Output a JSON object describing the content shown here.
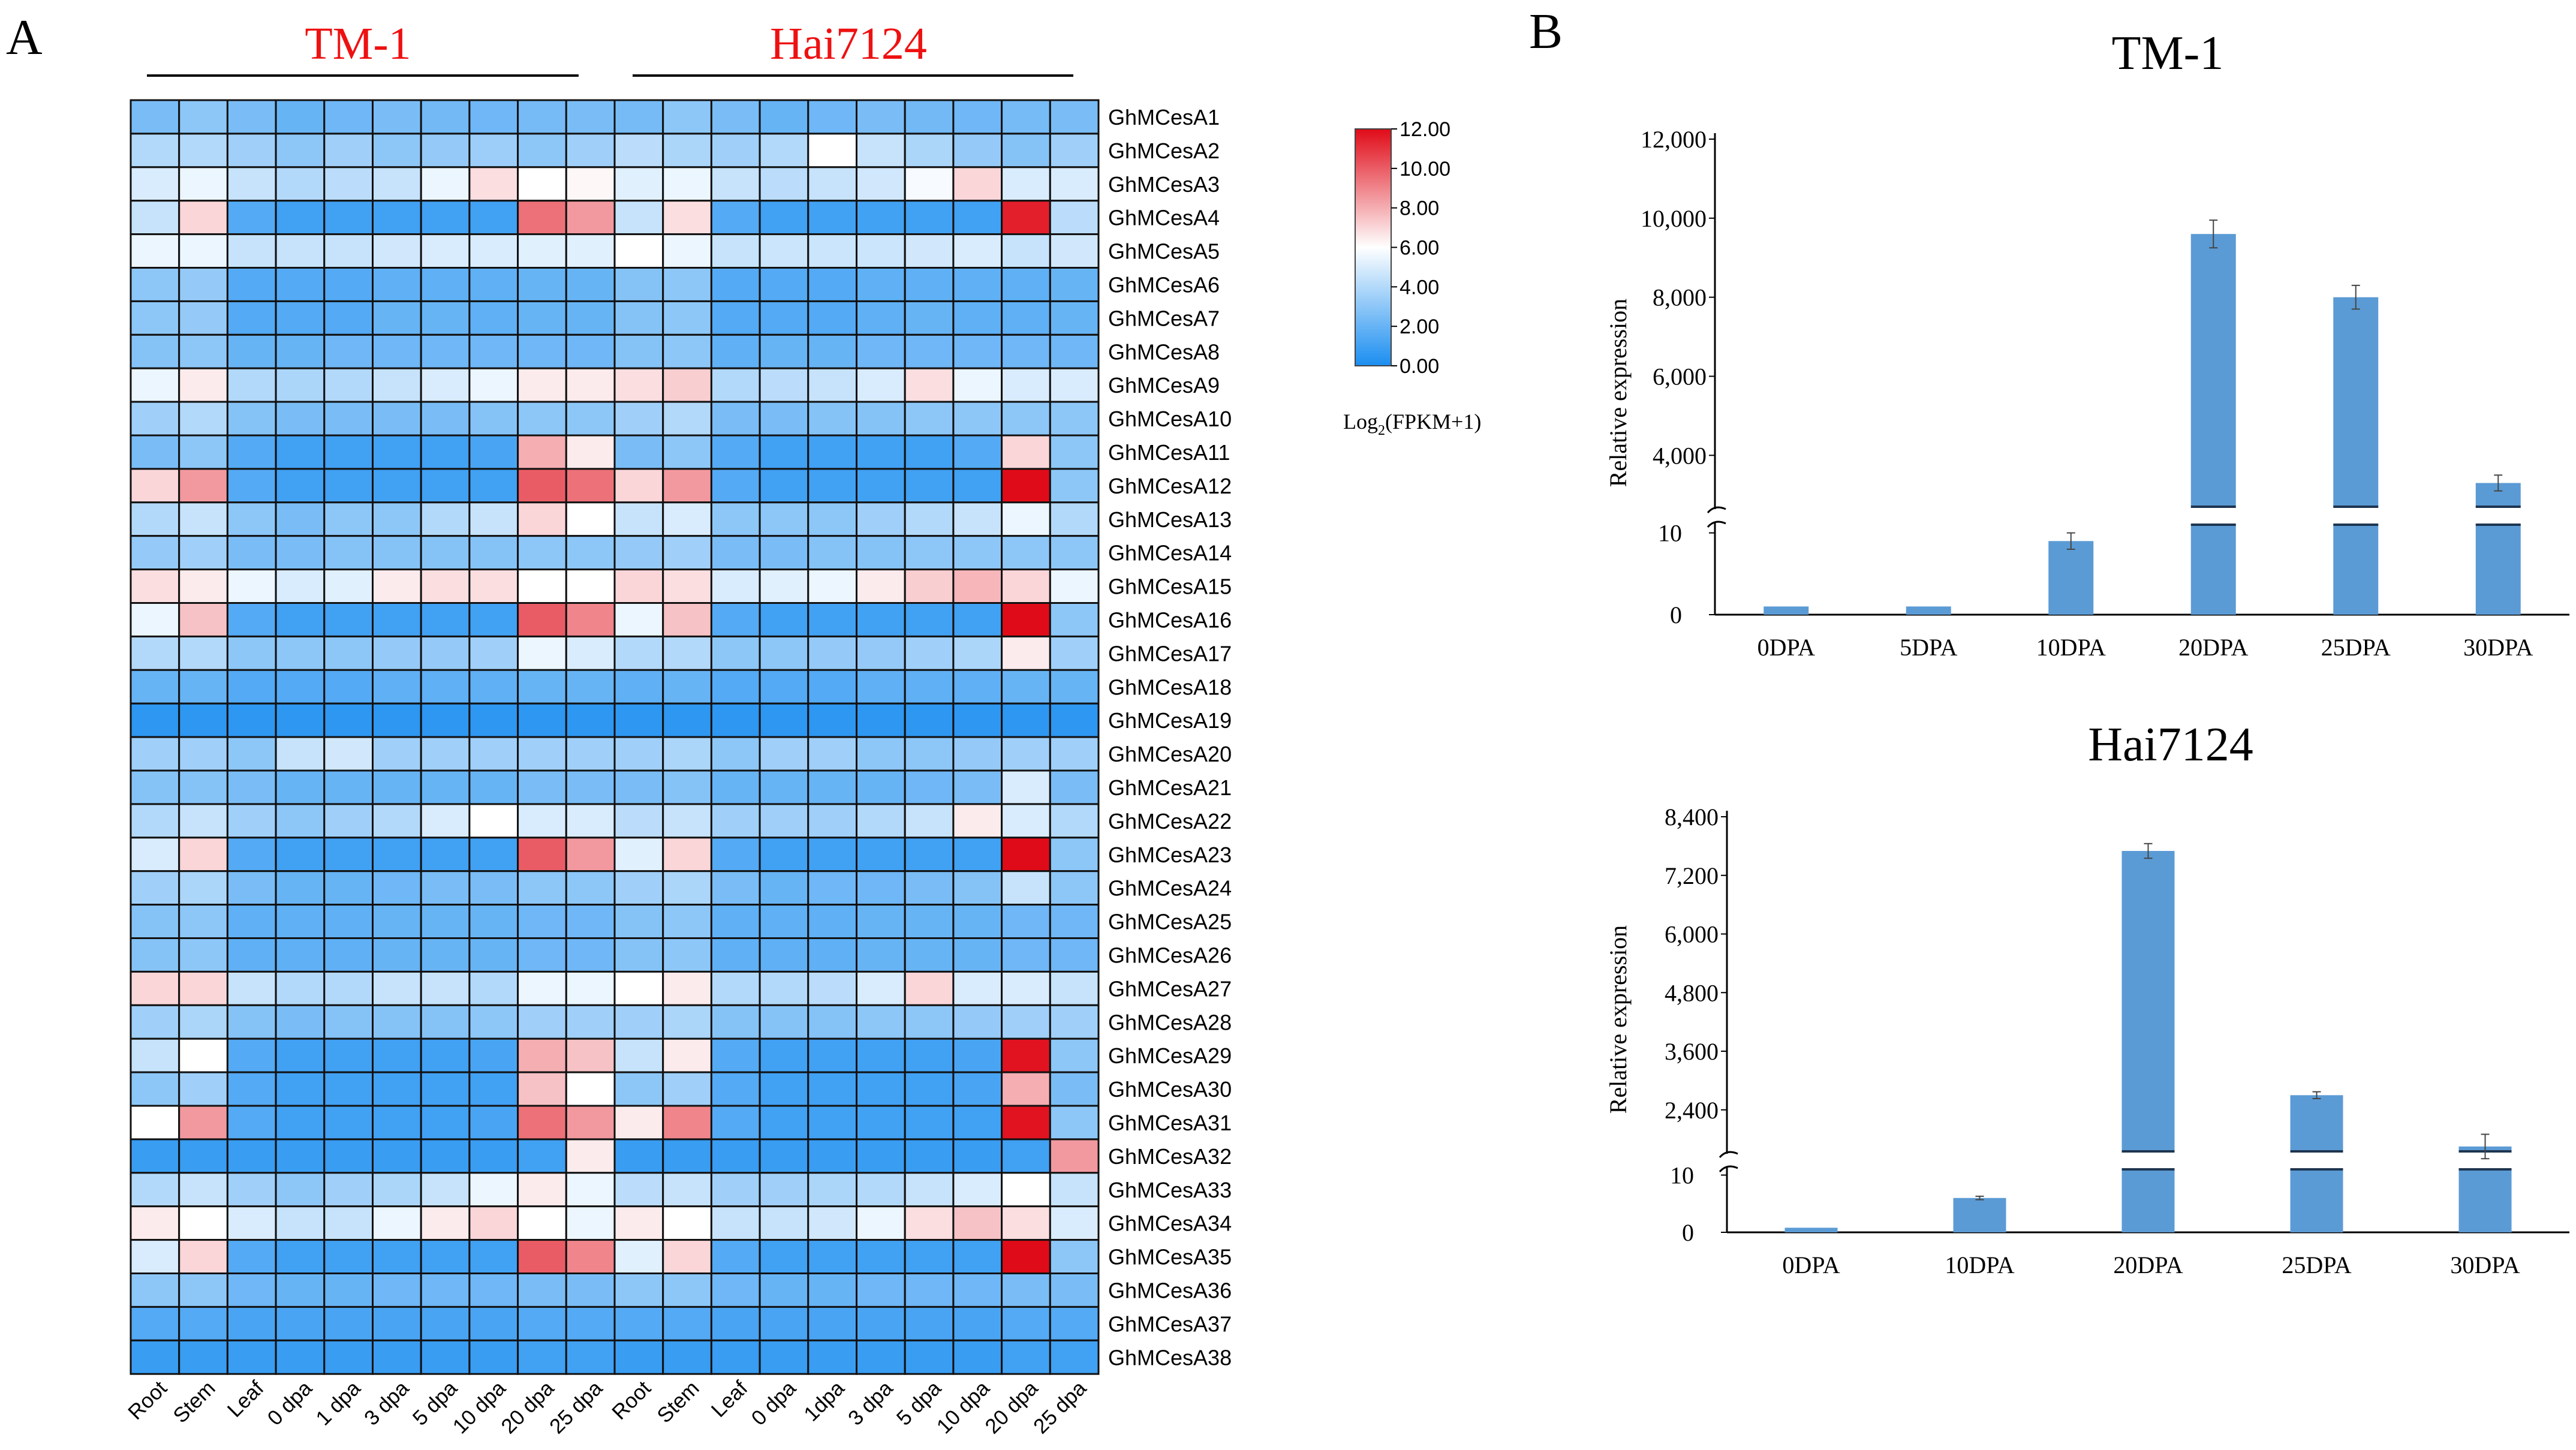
{
  "panels": {
    "a_label": "A",
    "b_label": "B",
    "group1": "TM-1",
    "group2": "Hai7124",
    "group_color": "#ee1111"
  },
  "legend": {
    "ticks": [
      "12.00",
      "10.00",
      "8.00",
      "6.00",
      "4.00",
      "2.00",
      "0.00"
    ],
    "title_main": "Log",
    "title_sub": "2",
    "title_tail": "(FPKM+1)",
    "colors": {
      "low": "#1b8ef0",
      "mid": "#ffffff",
      "high": "#e00b18"
    }
  },
  "chart_data": [
    {
      "type": "heatmap",
      "title": "",
      "value_range": [
        0,
        12
      ],
      "columns": [
        "Root",
        "Stem",
        "Leaf",
        "0 dpa",
        "1 dpa",
        "3 dpa",
        "5 dpa",
        "10 dpa",
        "20 dpa",
        "25 dpa",
        "Root",
        "Stem",
        "Leaf",
        "0 dpa",
        "1dpa",
        "3 dpa",
        "5 dpa",
        "10 dpa",
        "20 dpa",
        "25 dpa"
      ],
      "rows": [
        "GhMCesA1",
        "GhMCesA2",
        "GhMCesA3",
        "GhMCesA4",
        "GhMCesA5",
        "GhMCesA6",
        "GhMCesA7",
        "GhMCesA8",
        "GhMCesA9",
        "GhMCesA10",
        "GhMCesA11",
        "GhMCesA12",
        "GhMCesA13",
        "GhMCesA14",
        "GhMCesA15",
        "GhMCesA16",
        "GhMCesA17",
        "GhMCesA18",
        "GhMCesA19",
        "GhMCesA20",
        "GhMCesA21",
        "GhMCesA22",
        "GhMCesA23",
        "GhMCesA24",
        "GhMCesA25",
        "GhMCesA26",
        "GhMCesA27",
        "GhMCesA28",
        "GhMCesA29",
        "GhMCesA30",
        "GhMCesA31",
        "GhMCesA32",
        "GhMCesA33",
        "GhMCesA34",
        "GhMCesA35",
        "GhMCesA36",
        "GhMCesA37",
        "GhMCesA38"
      ],
      "values": [
        [
          2.5,
          3.0,
          2.5,
          2.0,
          2.2,
          2.5,
          2.3,
          2.2,
          2.4,
          2.5,
          2.4,
          3.0,
          2.5,
          2.0,
          2.2,
          2.5,
          2.3,
          2.2,
          2.4,
          2.5
        ],
        [
          4.0,
          4.0,
          3.5,
          3.0,
          3.5,
          3.0,
          3.2,
          3.4,
          3.0,
          3.5,
          4.2,
          3.8,
          3.5,
          4.0,
          6.0,
          4.5,
          3.8,
          3.2,
          2.8,
          3.5
        ],
        [
          5.0,
          5.5,
          4.5,
          4.0,
          4.2,
          4.5,
          5.5,
          6.8,
          6.0,
          6.2,
          5.2,
          5.5,
          4.5,
          4.2,
          4.5,
          4.8,
          5.8,
          7.0,
          5.0,
          5.0
        ],
        [
          4.5,
          7.0,
          1.5,
          1.0,
          1.0,
          1.0,
          1.0,
          1.0,
          9.5,
          8.5,
          4.5,
          6.8,
          1.5,
          1.0,
          1.0,
          1.0,
          1.0,
          1.0,
          11.5,
          4.2
        ],
        [
          5.5,
          5.5,
          4.5,
          4.5,
          4.5,
          4.8,
          5.0,
          5.0,
          5.2,
          5.2,
          6.0,
          5.5,
          4.5,
          4.6,
          4.6,
          4.6,
          4.8,
          5.0,
          4.5,
          4.8
        ],
        [
          3.0,
          3.2,
          1.5,
          1.5,
          1.5,
          1.8,
          1.8,
          1.8,
          2.0,
          2.0,
          2.8,
          3.0,
          1.5,
          1.5,
          1.5,
          1.8,
          1.8,
          1.8,
          1.8,
          2.0
        ],
        [
          3.0,
          3.2,
          1.5,
          1.5,
          1.5,
          2.0,
          2.0,
          1.8,
          2.0,
          2.0,
          2.8,
          3.0,
          1.5,
          1.5,
          1.5,
          1.8,
          2.0,
          1.8,
          1.8,
          2.0
        ],
        [
          2.8,
          3.0,
          2.0,
          2.0,
          2.2,
          2.2,
          2.2,
          2.2,
          2.2,
          2.2,
          2.8,
          3.0,
          1.8,
          2.0,
          2.0,
          2.2,
          2.2,
          2.2,
          2.2,
          2.2
        ],
        [
          5.5,
          6.5,
          4.0,
          3.8,
          4.0,
          4.5,
          5.0,
          5.5,
          6.5,
          6.5,
          6.8,
          7.2,
          4.0,
          4.2,
          4.5,
          5.0,
          6.8,
          5.5,
          5.0,
          5.0
        ],
        [
          3.5,
          4.0,
          2.8,
          2.5,
          2.5,
          2.5,
          2.5,
          2.8,
          3.0,
          3.0,
          3.5,
          4.0,
          2.5,
          2.5,
          2.8,
          2.8,
          3.0,
          3.0,
          3.0,
          3.0
        ],
        [
          2.5,
          3.0,
          1.5,
          1.0,
          1.0,
          1.0,
          1.0,
          1.2,
          8.0,
          6.5,
          2.5,
          3.0,
          1.5,
          1.0,
          1.0,
          1.0,
          1.0,
          1.5,
          7.0,
          3.0
        ],
        [
          7.0,
          8.5,
          1.5,
          1.0,
          1.0,
          1.0,
          1.0,
          1.0,
          10.0,
          9.5,
          7.0,
          8.5,
          1.5,
          1.0,
          1.0,
          1.0,
          1.0,
          1.0,
          12.0,
          3.0
        ],
        [
          4.0,
          4.5,
          3.0,
          2.5,
          3.0,
          3.0,
          4.0,
          4.5,
          7.0,
          6.0,
          4.5,
          5.0,
          3.0,
          3.0,
          3.0,
          3.5,
          4.0,
          4.5,
          5.5,
          4.0
        ],
        [
          3.2,
          3.5,
          2.5,
          2.5,
          2.8,
          2.8,
          2.8,
          2.8,
          3.0,
          3.0,
          3.2,
          3.5,
          2.5,
          2.5,
          2.8,
          2.8,
          3.0,
          3.0,
          3.0,
          3.0
        ],
        [
          6.8,
          6.5,
          5.5,
          5.0,
          5.2,
          6.5,
          6.8,
          6.8,
          6.0,
          6.0,
          7.0,
          6.8,
          5.0,
          5.2,
          5.5,
          6.5,
          7.2,
          7.8,
          7.0,
          5.5
        ],
        [
          5.5,
          7.5,
          1.5,
          1.0,
          1.0,
          1.0,
          1.0,
          1.0,
          10.0,
          9.0,
          5.5,
          7.5,
          1.5,
          1.0,
          1.0,
          1.0,
          1.0,
          1.0,
          12.0,
          3.0
        ],
        [
          4.0,
          4.0,
          3.0,
          3.0,
          3.0,
          3.2,
          3.2,
          3.5,
          5.5,
          5.0,
          4.0,
          4.0,
          3.0,
          3.0,
          3.2,
          3.2,
          3.5,
          3.8,
          6.5,
          3.5
        ],
        [
          2.0,
          2.0,
          1.5,
          1.5,
          1.5,
          1.8,
          1.8,
          1.8,
          2.0,
          2.0,
          1.8,
          2.0,
          1.5,
          1.5,
          1.5,
          1.8,
          1.8,
          1.8,
          2.0,
          2.0
        ],
        [
          0.5,
          0.5,
          0.5,
          0.5,
          0.5,
          0.5,
          0.5,
          0.5,
          0.5,
          0.5,
          0.5,
          0.5,
          0.5,
          0.5,
          0.5,
          0.5,
          0.5,
          0.5,
          0.5,
          0.5
        ],
        [
          3.5,
          3.5,
          3.0,
          4.5,
          4.8,
          3.5,
          3.5,
          3.5,
          3.5,
          3.5,
          3.5,
          3.8,
          3.0,
          3.5,
          3.5,
          3.0,
          3.0,
          3.2,
          3.5,
          3.5
        ],
        [
          2.8,
          2.8,
          2.5,
          2.0,
          2.0,
          2.0,
          2.0,
          2.0,
          2.5,
          2.5,
          2.5,
          2.8,
          2.0,
          2.0,
          2.0,
          2.0,
          2.2,
          2.5,
          5.0,
          2.5
        ],
        [
          4.0,
          4.5,
          3.5,
          3.0,
          3.5,
          4.0,
          5.0,
          6.0,
          5.0,
          5.0,
          4.2,
          4.5,
          3.5,
          3.5,
          3.5,
          4.0,
          4.5,
          6.5,
          5.0,
          4.0
        ],
        [
          5.0,
          7.0,
          1.5,
          1.0,
          1.0,
          1.0,
          1.0,
          1.0,
          10.0,
          8.5,
          5.2,
          7.0,
          1.5,
          1.0,
          1.0,
          1.0,
          1.0,
          1.0,
          12.0,
          3.0
        ],
        [
          3.5,
          3.8,
          2.5,
          2.0,
          2.0,
          2.2,
          2.5,
          2.5,
          3.0,
          3.0,
          3.5,
          3.8,
          2.5,
          2.0,
          2.2,
          2.2,
          2.5,
          2.8,
          4.5,
          3.0
        ],
        [
          2.8,
          3.0,
          1.8,
          1.8,
          1.8,
          2.0,
          2.0,
          2.0,
          2.2,
          2.2,
          2.8,
          3.0,
          1.8,
          1.8,
          1.8,
          2.0,
          2.0,
          2.0,
          2.2,
          2.2
        ],
        [
          2.8,
          3.0,
          1.8,
          1.8,
          1.8,
          2.0,
          2.0,
          2.0,
          2.2,
          2.2,
          2.8,
          3.0,
          1.8,
          1.8,
          1.8,
          2.0,
          2.0,
          2.0,
          2.2,
          2.2
        ],
        [
          7.0,
          7.0,
          4.5,
          4.0,
          4.0,
          4.5,
          4.5,
          4.0,
          5.5,
          5.5,
          6.0,
          6.5,
          4.0,
          4.0,
          4.2,
          5.0,
          7.0,
          5.0,
          5.0,
          4.5
        ],
        [
          3.5,
          3.8,
          2.8,
          2.5,
          2.8,
          2.8,
          2.8,
          3.0,
          3.5,
          3.5,
          3.5,
          3.8,
          2.8,
          2.8,
          2.8,
          3.0,
          3.0,
          3.2,
          3.5,
          3.5
        ],
        [
          4.5,
          6.0,
          1.5,
          1.0,
          1.0,
          1.0,
          1.0,
          1.2,
          8.0,
          7.5,
          4.5,
          6.5,
          1.5,
          1.0,
          1.0,
          1.0,
          1.0,
          1.2,
          11.8,
          3.0
        ],
        [
          3.0,
          3.5,
          1.5,
          1.0,
          1.0,
          1.0,
          1.0,
          1.0,
          7.5,
          6.0,
          3.0,
          3.5,
          1.5,
          1.0,
          1.0,
          1.0,
          1.0,
          1.2,
          8.0,
          2.5
        ],
        [
          6.0,
          8.5,
          1.5,
          1.0,
          1.0,
          1.0,
          1.0,
          1.2,
          9.5,
          8.5,
          6.5,
          9.0,
          1.5,
          1.0,
          1.0,
          1.0,
          1.0,
          1.0,
          11.8,
          3.0
        ],
        [
          0.8,
          0.8,
          0.8,
          0.8,
          0.8,
          0.8,
          0.8,
          0.8,
          1.0,
          6.5,
          0.8,
          0.8,
          0.8,
          0.8,
          0.8,
          0.8,
          0.8,
          0.8,
          1.0,
          8.5
        ],
        [
          4.0,
          4.5,
          3.5,
          3.0,
          3.5,
          3.8,
          4.5,
          5.5,
          6.5,
          5.5,
          4.2,
          4.5,
          3.5,
          3.5,
          3.8,
          4.0,
          4.5,
          5.0,
          6.0,
          4.5
        ],
        [
          6.5,
          6.0,
          5.0,
          4.5,
          4.5,
          5.5,
          6.5,
          7.0,
          6.0,
          5.5,
          6.5,
          6.0,
          4.5,
          4.5,
          4.8,
          5.5,
          6.8,
          7.5,
          6.8,
          5.0
        ],
        [
          5.0,
          7.0,
          1.5,
          1.0,
          1.0,
          1.0,
          1.0,
          1.0,
          10.0,
          9.0,
          5.2,
          7.0,
          1.5,
          1.0,
          1.0,
          1.0,
          1.0,
          1.0,
          12.0,
          3.0
        ],
        [
          3.0,
          3.0,
          2.2,
          2.0,
          2.0,
          2.2,
          2.2,
          2.2,
          2.5,
          2.5,
          3.0,
          3.0,
          2.2,
          2.0,
          2.0,
          2.2,
          2.2,
          2.2,
          2.5,
          2.5
        ],
        [
          1.5,
          1.5,
          1.2,
          1.2,
          1.2,
          1.2,
          1.2,
          1.2,
          1.5,
          1.5,
          1.5,
          1.5,
          1.2,
          1.2,
          1.2,
          1.2,
          1.2,
          1.2,
          1.5,
          1.5
        ],
        [
          0.8,
          0.8,
          0.8,
          0.8,
          0.8,
          0.8,
          0.8,
          0.8,
          1.0,
          1.0,
          0.8,
          0.8,
          0.8,
          0.8,
          0.8,
          0.8,
          0.8,
          0.8,
          1.0,
          1.0
        ]
      ]
    },
    {
      "type": "bar",
      "title": "TM-1",
      "categories": [
        "0DPA",
        "5DPA",
        "10DPA",
        "20DPA",
        "25DPA",
        "30DPA"
      ],
      "values": [
        1,
        1,
        9,
        9600,
        8000,
        3300
      ],
      "errors": [
        0,
        0,
        1,
        350,
        300,
        200
      ],
      "ylabel": "Relative expression",
      "xlabel": "",
      "y_ticks_lower": [
        "0",
        "10"
      ],
      "y_ticks_upper": [
        "4,000",
        "6,000",
        "8,000",
        "10,000",
        "12,000"
      ],
      "ylim_lower": [
        0,
        11
      ],
      "ylim_upper": [
        2700,
        12000
      ],
      "bar_color": "#5b9bd5"
    },
    {
      "type": "bar",
      "title": "Hai7124",
      "categories": [
        "0DPA",
        "10DPA",
        "20DPA",
        "25DPA",
        "30DPA"
      ],
      "values": [
        0.8,
        6,
        7700,
        2700,
        1650
      ],
      "errors": [
        0,
        0.3,
        150,
        70,
        250
      ],
      "ylabel": "Relative expression",
      "xlabel": "",
      "y_ticks_lower": [
        "0",
        "10"
      ],
      "y_ticks_upper": [
        "2,400",
        "3,600",
        "4,800",
        "6,000",
        "7,200",
        "8,400"
      ],
      "ylim_lower": [
        0,
        11
      ],
      "ylim_upper": [
        1550,
        8400
      ],
      "bar_color": "#5b9bd5"
    }
  ]
}
